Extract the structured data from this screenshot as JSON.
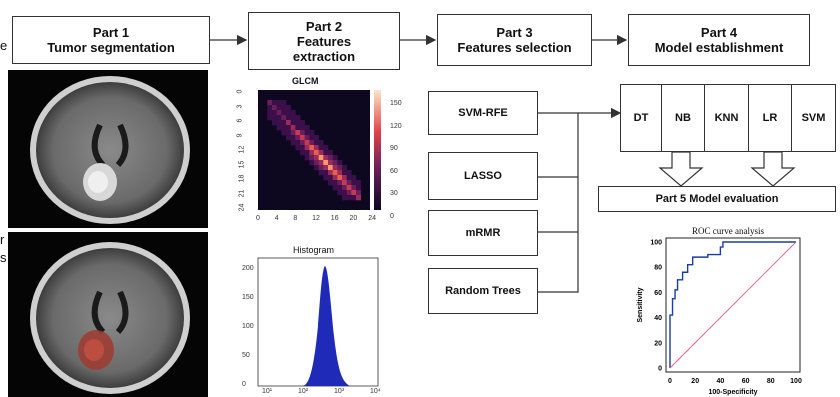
{
  "parts": {
    "part1": {
      "line1": "Part 1",
      "line2": "Tumor segmentation"
    },
    "part2": {
      "line1": "Part 2",
      "line2": "Features",
      "line3": "extraction"
    },
    "part3": {
      "line1": "Part 3",
      "line2": "Features selection"
    },
    "part4": {
      "line1": "Part 4",
      "line2": "Model establishment"
    },
    "part5": {
      "label": "Part 5 Model evaluation"
    }
  },
  "selection_methods": [
    "SVM-RFE",
    "LASSO",
    "mRMR",
    "Random Trees"
  ],
  "models": [
    "DT",
    "NB",
    "KNN",
    "LR",
    "SVM"
  ],
  "edge_fragments": [
    "e",
    "r",
    "s"
  ],
  "glcm": {
    "title": "GLCM",
    "x_ticks": [
      "0",
      "4",
      "8",
      "12",
      "16",
      "20",
      "24"
    ],
    "y_ticks": [
      "0",
      "3",
      "6",
      "9",
      "12",
      "15",
      "18",
      "21",
      "24"
    ],
    "colorbar_ticks": [
      "150",
      "120",
      "90",
      "60",
      "30",
      "0"
    ]
  },
  "histogram": {
    "title": "Histogram",
    "y_ticks": [
      "200",
      "150",
      "100",
      "50",
      "0"
    ],
    "x_ticks": [
      "10¹",
      "10²",
      "10³",
      "10⁴"
    ]
  },
  "chart_data": {
    "type": "line",
    "title": "ROC curve analysis",
    "xlabel": "100-Specificity",
    "ylabel": "Sensitivity",
    "xlim": [
      0,
      100
    ],
    "ylim": [
      0,
      100
    ],
    "x_ticks": [
      "0",
      "20",
      "40",
      "60",
      "80",
      "100"
    ],
    "y_ticks": [
      "0",
      "20",
      "40",
      "60",
      "80",
      "100"
    ],
    "series": [
      {
        "values_x": [
          0,
          0,
          2,
          2,
          4,
          4,
          6,
          6,
          10,
          10,
          14,
          14,
          18,
          18,
          30,
          30,
          40,
          40,
          42,
          42,
          100
        ],
        "values_y": [
          0,
          42,
          42,
          55,
          55,
          62,
          62,
          70,
          70,
          76,
          76,
          82,
          82,
          88,
          88,
          90,
          90,
          96,
          96,
          100,
          100
        ]
      },
      {
        "values_x": [
          0,
          100
        ],
        "values_y": [
          0,
          100
        ]
      }
    ],
    "colors": [
      "#1a3fa0",
      "#e06080"
    ]
  }
}
